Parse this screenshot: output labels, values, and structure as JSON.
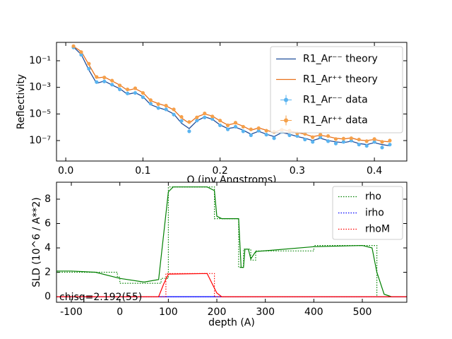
{
  "chart_data": [
    {
      "type": "line",
      "log_y": true,
      "xlabel": "Q (inv Angstroms)",
      "ylabel": "Reflectivity",
      "legend": "upper right",
      "xlim": [
        -0.012,
        0.442
      ],
      "xticks": [
        {
          "value": 0,
          "label": "0.0"
        },
        0.1,
        0.2,
        0.3,
        0.4
      ],
      "ylim": [
        2.9e-09,
        2.4
      ],
      "yticks": [
        {
          "value": 1e-07,
          "label": "10⁻⁷"
        },
        {
          "value": 1e-05,
          "label": "10⁻⁵"
        },
        {
          "value": 0.001,
          "label": "10⁻³"
        },
        {
          "value": 0.1,
          "label": "10⁻¹"
        }
      ],
      "x": [
        0.01,
        0.02,
        0.03,
        0.04,
        0.05,
        0.06,
        0.07,
        0.08,
        0.09,
        0.1,
        0.11,
        0.12,
        0.13,
        0.14,
        0.15,
        0.16,
        0.17,
        0.18,
        0.19,
        0.2,
        0.21,
        0.22,
        0.23,
        0.24,
        0.25,
        0.26,
        0.27,
        0.28,
        0.29,
        0.3,
        0.31,
        0.32,
        0.33,
        0.34,
        0.35,
        0.36,
        0.37,
        0.38,
        0.39,
        0.4,
        0.41,
        0.42
      ],
      "series": [
        {
          "name": "R1_Ar⁻⁻ theory",
          "style": "line",
          "color": "#1f4e9c",
          "values": [
            1.1,
            0.3,
            0.02,
            0.002,
            0.003,
            0.0015,
            0.0008,
            0.0003,
            0.0004,
            0.0002,
            5e-05,
            3e-05,
            2e-05,
            1e-05,
            2e-06,
            8e-07,
            3e-06,
            6e-06,
            4e-06,
            1.5e-06,
            8e-07,
            1e-06,
            6e-07,
            3e-07,
            5e-07,
            3e-07,
            2e-07,
            4e-07,
            3e-07,
            2e-07,
            1.5e-07,
            1e-07,
            1.5e-07,
            1e-07,
            8e-08,
            7e-08,
            9e-08,
            6e-08,
            5e-08,
            7e-08,
            5e-08,
            4e-08
          ]
        },
        {
          "name": "R1_Ar⁺⁺ theory",
          "style": "line",
          "color": "#e8711c",
          "values": [
            1.2,
            0.5,
            0.05,
            0.005,
            0.006,
            0.003,
            0.0015,
            0.0006,
            0.0008,
            0.0004,
            0.0001,
            6e-05,
            4e-05,
            2e-05,
            5e-06,
            2e-06,
            6e-06,
            1e-05,
            7e-06,
            3e-06,
            1.5e-06,
            2e-06,
            1.2e-06,
            6e-07,
            9e-07,
            6e-07,
            4e-07,
            7e-07,
            5e-07,
            4e-07,
            3e-07,
            2e-07,
            2.5e-07,
            2e-07,
            1.5e-07,
            1.3e-07,
            1.6e-07,
            1.1e-07,
            1e-07,
            1.2e-07,
            9e-08,
            8e-08
          ]
        },
        {
          "name": "R1_Ar⁻⁻ data",
          "style": "points",
          "color": "#5ab4f0",
          "values": [
            1.0,
            0.28,
            0.025,
            0.0025,
            0.0028,
            0.0016,
            0.0007,
            0.00035,
            0.00038,
            0.00018,
            6e-05,
            2.8e-05,
            2.2e-05,
            9e-06,
            3e-06,
            5e-07,
            3.2e-06,
            5.5e-06,
            4.2e-06,
            1.4e-06,
            7e-07,
            1.1e-06,
            5e-07,
            2.5e-07,
            5.5e-07,
            2.8e-07,
            1.5e-07,
            4.5e-07,
            2.5e-07,
            2.2e-07,
            1.2e-07,
            8e-08,
            1.8e-07,
            9e-08,
            6e-08,
            8e-08,
            1e-07,
            5e-08,
            4e-08,
            8e-08,
            3e-08,
            5e-08
          ]
        },
        {
          "name": "R1_Ar⁺⁺ data",
          "style": "points",
          "color": "#f5a04a",
          "values": [
            1.25,
            0.45,
            0.06,
            0.006,
            0.0055,
            0.0032,
            0.0014,
            0.0007,
            0.00085,
            0.00038,
            0.00011,
            5.5e-05,
            4.2e-05,
            2.2e-05,
            6e-06,
            2.5e-06,
            5.5e-06,
            1.1e-05,
            6.5e-06,
            3.2e-06,
            1.4e-06,
            2.2e-06,
            1.1e-06,
            7e-07,
            8.5e-07,
            5.5e-07,
            4.5e-07,
            6.5e-07,
            5.5e-07,
            3.5e-07,
            3.2e-07,
            1.8e-07,
            2.8e-07,
            2.2e-07,
            1.3e-07,
            1.4e-07,
            1.5e-07,
            1.2e-07,
            9e-08,
            1.3e-07,
            8e-08,
            1e-07
          ]
        }
      ]
    },
    {
      "type": "line",
      "log_y": false,
      "xlabel": "depth (A)",
      "ylabel": "SLD (10^6 / A**2)",
      "legend": "upper right",
      "annotation": "chisq=2.192(55)",
      "xlim": [
        -130.6,
        591.7
      ],
      "xticks": [
        -100,
        0,
        100,
        200,
        300,
        400,
        500
      ],
      "ylim": [
        -0.46,
        9.39
      ],
      "yticks": [
        0,
        2,
        4,
        6,
        8
      ],
      "series": [
        {
          "name": "rho",
          "style": "line",
          "linestyle": "dotted",
          "color": "#008000",
          "x": [
            -130,
            -5,
            -5,
            0,
            0,
            85,
            85,
            100,
            100,
            195,
            195,
            245,
            245,
            255,
            255,
            270,
            270,
            280,
            280,
            400,
            400,
            530,
            530,
            592
          ],
          "values": [
            2.0,
            2.0,
            1.6,
            1.6,
            1.1,
            1.1,
            1.5,
            1.5,
            9.0,
            9.0,
            6.4,
            6.4,
            2.4,
            2.4,
            3.9,
            3.9,
            3.0,
            3.0,
            3.75,
            3.75,
            4.2,
            4.2,
            0,
            0
          ],
          "smooth_x": [
            -130,
            -100,
            -50,
            0,
            50,
            80,
            90,
            100,
            110,
            180,
            195,
            200,
            210,
            245,
            250,
            255,
            258,
            265,
            270,
            280,
            400,
            500,
            520,
            530,
            545,
            560,
            592
          ],
          "smooth_values": [
            2.1,
            2.1,
            2.0,
            1.5,
            1.2,
            1.4,
            5,
            8.6,
            9.0,
            9.0,
            8.7,
            6.6,
            6.4,
            6.4,
            2.4,
            2.4,
            3.9,
            3.9,
            3.1,
            3.7,
            4.1,
            4.2,
            4.0,
            2,
            0.2,
            0,
            0
          ]
        },
        {
          "name": "irho",
          "style": "line",
          "linestyle": "dotted",
          "color": "#0000ff",
          "x": [
            -130,
            592
          ],
          "values": [
            0,
            0
          ],
          "smooth_x": [
            -130,
            592
          ],
          "smooth_values": [
            0,
            0
          ]
        },
        {
          "name": "rhoM",
          "style": "line",
          "linestyle": "dotted",
          "color": "#ff0000",
          "x": [
            -130,
            95,
            95,
            195,
            195,
            592
          ],
          "values": [
            0,
            0,
            1.9,
            1.9,
            0,
            0
          ],
          "smooth_x": [
            -130,
            80,
            90,
            100,
            180,
            200,
            210,
            592
          ],
          "smooth_values": [
            0,
            0,
            1.0,
            1.85,
            1.9,
            0.3,
            0,
            0
          ]
        }
      ]
    }
  ]
}
